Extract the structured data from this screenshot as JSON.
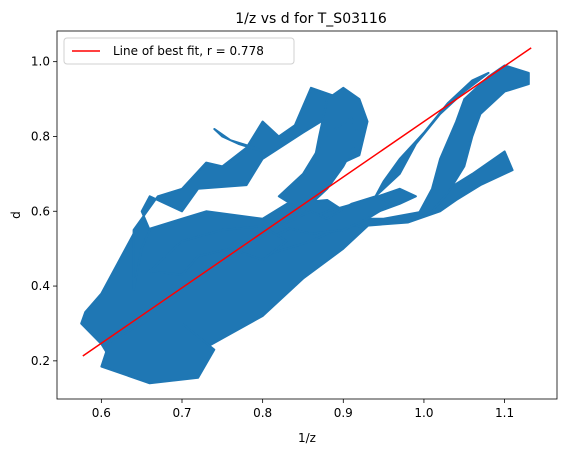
{
  "chart_data": {
    "type": "scatter",
    "title": "1/z vs d for T_S03116",
    "xlabel": "1/z",
    "ylabel": "d",
    "xlim": [
      0.545,
      1.165
    ],
    "ylim": [
      0.098,
      1.082
    ],
    "x_ticks": [
      0.6,
      0.7,
      0.8,
      0.9,
      1.0,
      1.1
    ],
    "x_tick_labels": [
      "0.6",
      "0.7",
      "0.8",
      "0.9",
      "1.0",
      "1.1"
    ],
    "y_ticks": [
      0.2,
      0.4,
      0.6,
      0.8,
      1.0
    ],
    "y_tick_labels": [
      "0.2",
      "0.4",
      "0.6",
      "0.8",
      "1.0"
    ],
    "grid": false,
    "legend": {
      "placement": "top-left",
      "entries": [
        "Line of best fit, r = 0.778"
      ]
    },
    "colors": {
      "scatter": "#1f77b4",
      "fit_line": "#ff0000"
    },
    "series": [
      {
        "kind": "scatter",
        "approximate_regions": [
          {
            "polygon": [
              [
                0.575,
                0.3
              ],
              [
                0.6,
                0.245
              ],
              [
                0.62,
                0.175
              ],
              [
                0.7,
                0.2
              ],
              [
                0.75,
                0.26
              ],
              [
                0.8,
                0.32
              ],
              [
                0.85,
                0.42
              ],
              [
                0.9,
                0.5
              ],
              [
                0.93,
                0.56
              ],
              [
                0.88,
                0.63
              ],
              [
                0.83,
                0.62
              ],
              [
                0.8,
                0.58
              ],
              [
                0.73,
                0.6
              ],
              [
                0.7,
                0.58
              ],
              [
                0.67,
                0.56
              ],
              [
                0.64,
                0.54
              ],
              [
                0.62,
                0.46
              ],
              [
                0.6,
                0.38
              ],
              [
                0.58,
                0.33
              ]
            ]
          },
          {
            "polygon": [
              [
                0.6,
                0.185
              ],
              [
                0.66,
                0.14
              ],
              [
                0.72,
                0.155
              ],
              [
                0.74,
                0.23
              ],
              [
                0.7,
                0.3
              ],
              [
                0.65,
                0.3
              ],
              [
                0.61,
                0.25
              ]
            ]
          },
          {
            "polygon": [
              [
                0.64,
                0.39
              ],
              [
                0.65,
                0.5
              ],
              [
                0.66,
                0.55
              ],
              [
                0.65,
                0.6
              ],
              [
                0.66,
                0.64
              ],
              [
                0.7,
                0.6
              ],
              [
                0.72,
                0.66
              ],
              [
                0.78,
                0.67
              ],
              [
                0.8,
                0.74
              ],
              [
                0.85,
                0.81
              ],
              [
                0.88,
                0.85
              ],
              [
                0.9,
                0.87
              ],
              [
                0.9,
                0.9
              ],
              [
                0.86,
                0.93
              ],
              [
                0.84,
                0.83
              ],
              [
                0.82,
                0.8
              ],
              [
                0.8,
                0.84
              ],
              [
                0.78,
                0.77
              ],
              [
                0.75,
                0.72
              ],
              [
                0.73,
                0.73
              ],
              [
                0.7,
                0.66
              ],
              [
                0.67,
                0.64
              ],
              [
                0.64,
                0.55
              ]
            ]
          },
          {
            "polygon": [
              [
                0.74,
                0.82
              ],
              [
                0.76,
                0.79
              ],
              [
                0.79,
                0.77
              ],
              [
                0.8,
                0.76
              ],
              [
                0.77,
                0.78
              ],
              [
                0.75,
                0.8
              ]
            ]
          },
          {
            "polygon": [
              [
                0.86,
                0.69
              ],
              [
                0.9,
                0.73
              ],
              [
                0.92,
                0.75
              ],
              [
                0.93,
                0.84
              ],
              [
                0.92,
                0.9
              ],
              [
                0.9,
                0.93
              ],
              [
                0.88,
                0.9
              ],
              [
                0.87,
                0.8
              ]
            ]
          },
          {
            "polygon": [
              [
                0.8,
                0.48
              ],
              [
                0.86,
                0.52
              ],
              [
                0.92,
                0.58
              ],
              [
                0.97,
                0.62
              ],
              [
                0.99,
                0.64
              ],
              [
                0.97,
                0.66
              ],
              [
                0.93,
                0.63
              ],
              [
                0.88,
                0.6
              ],
              [
                0.82,
                0.54
              ]
            ]
          },
          {
            "polygon": [
              [
                0.86,
                0.58
              ],
              [
                0.95,
                0.58
              ],
              [
                1.0,
                0.6
              ],
              [
                1.03,
                0.66
              ],
              [
                1.06,
                0.7
              ],
              [
                1.1,
                0.76
              ],
              [
                1.11,
                0.71
              ],
              [
                1.07,
                0.67
              ],
              [
                1.04,
                0.63
              ],
              [
                1.02,
                0.6
              ],
              [
                0.98,
                0.57
              ],
              [
                0.92,
                0.56
              ]
            ]
          },
          {
            "polygon": [
              [
                0.99,
                0.58
              ],
              [
                1.01,
                0.66
              ],
              [
                1.02,
                0.74
              ],
              [
                1.04,
                0.84
              ],
              [
                1.05,
                0.9
              ],
              [
                1.08,
                0.96
              ],
              [
                1.1,
                0.99
              ],
              [
                1.13,
                0.97
              ],
              [
                1.13,
                0.94
              ],
              [
                1.1,
                0.92
              ],
              [
                1.07,
                0.86
              ],
              [
                1.06,
                0.8
              ],
              [
                1.05,
                0.72
              ],
              [
                1.03,
                0.65
              ],
              [
                1.01,
                0.6
              ]
            ]
          },
          {
            "polygon": [
              [
                0.94,
                0.64
              ],
              [
                0.97,
                0.7
              ],
              [
                0.99,
                0.78
              ],
              [
                1.02,
                0.86
              ],
              [
                1.05,
                0.92
              ],
              [
                1.08,
                0.97
              ],
              [
                1.06,
                0.95
              ],
              [
                1.03,
                0.89
              ],
              [
                1.0,
                0.81
              ],
              [
                0.97,
                0.74
              ],
              [
                0.95,
                0.68
              ]
            ]
          },
          {
            "polygon": [
              [
                0.82,
                0.56
              ],
              [
                0.86,
                0.6
              ],
              [
                0.88,
                0.58
              ],
              [
                0.91,
                0.62
              ],
              [
                0.94,
                0.64
              ],
              [
                0.96,
                0.62
              ],
              [
                0.93,
                0.58
              ],
              [
                0.9,
                0.55
              ],
              [
                0.86,
                0.54
              ]
            ]
          },
          {
            "polygon": [
              [
                0.82,
                0.64
              ],
              [
                0.85,
                0.7
              ],
              [
                0.87,
                0.77
              ],
              [
                0.89,
                0.82
              ],
              [
                0.91,
                0.85
              ],
              [
                0.92,
                0.8
              ],
              [
                0.9,
                0.72
              ],
              [
                0.88,
                0.66
              ],
              [
                0.85,
                0.6
              ]
            ]
          },
          {
            "polygon": [
              [
                0.66,
                0.44
              ],
              [
                0.7,
                0.43
              ],
              [
                0.72,
                0.48
              ],
              [
                0.76,
                0.5
              ],
              [
                0.8,
                0.47
              ],
              [
                0.83,
                0.52
              ],
              [
                0.8,
                0.56
              ],
              [
                0.75,
                0.55
              ],
              [
                0.7,
                0.52
              ]
            ]
          }
        ]
      },
      {
        "kind": "line",
        "name": "Line of best fit, r = 0.778",
        "x": [
          0.577,
          1.133
        ],
        "y": [
          0.213,
          1.037
        ]
      }
    ]
  }
}
